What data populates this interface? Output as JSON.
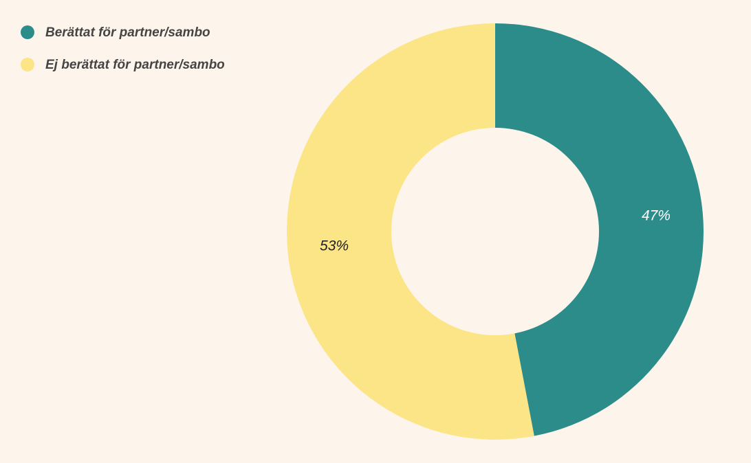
{
  "chart_data": {
    "type": "donut",
    "categories": [
      "Berättat för partner/sambo",
      "Ej berättat för partner/sambo"
    ],
    "values": [
      47,
      53
    ],
    "value_labels": [
      "47%",
      "53%"
    ],
    "colors": [
      "#2b8c8a",
      "#fbe587"
    ],
    "label_colors": [
      "#ffffff",
      "#222222"
    ],
    "legend": "top-left"
  }
}
